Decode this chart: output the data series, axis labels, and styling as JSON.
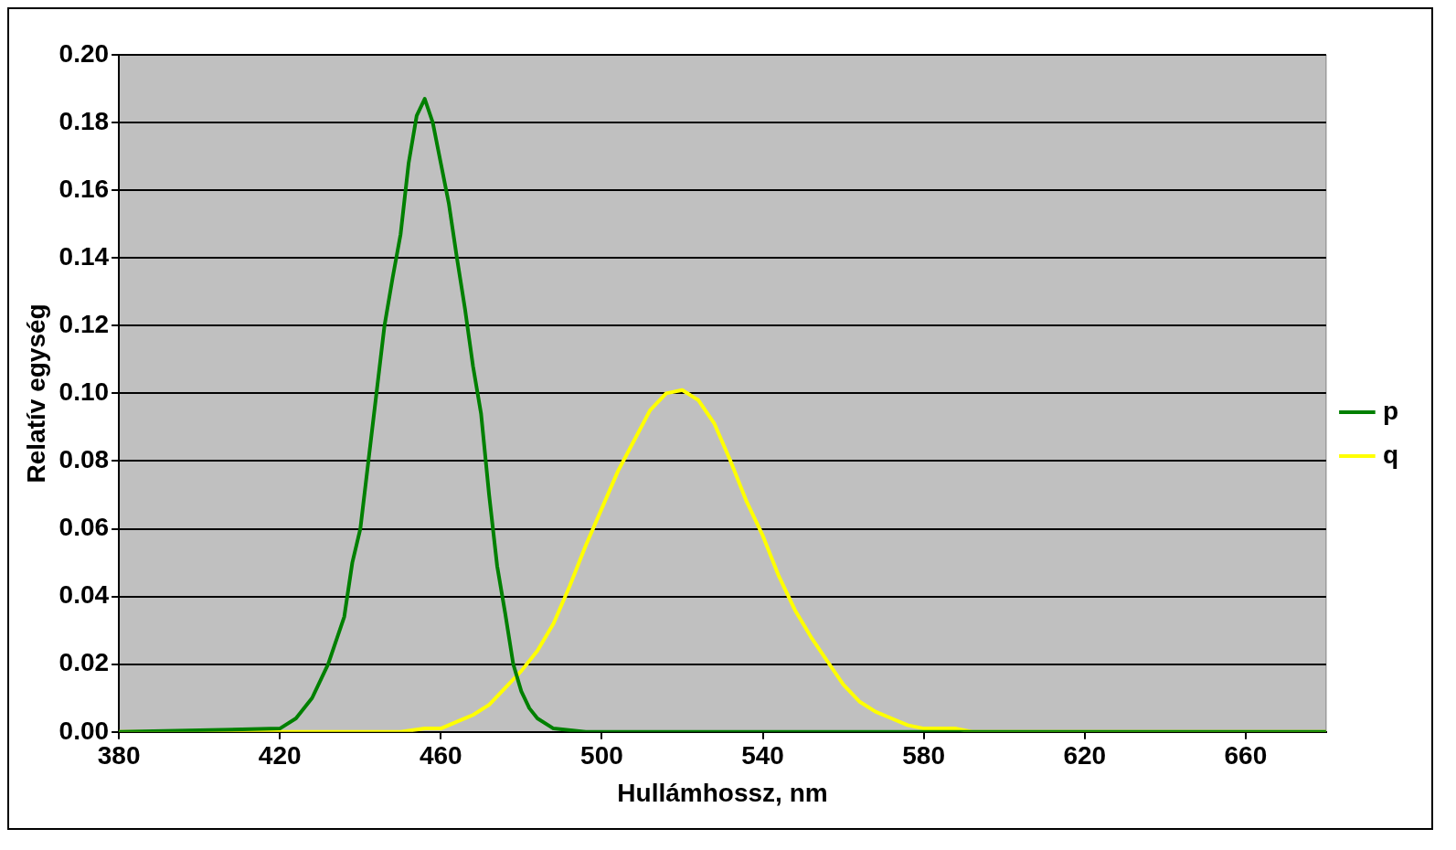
{
  "chart_data": {
    "type": "line",
    "xlabel": "Hullámhossz, nm",
    "ylabel": "Relatív egység",
    "xlim": [
      380,
      680
    ],
    "xticks": [
      380,
      420,
      460,
      500,
      540,
      580,
      620,
      660
    ],
    "ylim": [
      0,
      0.2
    ],
    "yticks": [
      {
        "value": 0,
        "label": "0.00"
      },
      0.02,
      0.04,
      0.06,
      0.08,
      {
        "value": 0.1,
        "label": "0.10"
      },
      0.12,
      0.14,
      0.16,
      0.18,
      {
        "value": 0.2,
        "label": "0.20"
      }
    ],
    "grid": "y",
    "legend": "right",
    "marker": "none",
    "line_style": "solid",
    "series": [
      {
        "name": "p",
        "color": "#008000",
        "x": [
          380,
          420,
          424,
          428,
          432,
          436,
          438,
          440,
          442,
          444,
          446,
          448,
          450,
          452,
          454,
          456,
          458,
          460,
          462,
          464,
          466,
          468,
          470,
          472,
          474,
          476,
          478,
          480,
          482,
          484,
          488,
          496,
          680
        ],
        "values": [
          0,
          0.001,
          0.004,
          0.01,
          0.02,
          0.034,
          0.05,
          0.06,
          0.08,
          0.1,
          0.12,
          0.134,
          0.147,
          0.168,
          0.182,
          0.187,
          0.18,
          0.168,
          0.156,
          0.14,
          0.125,
          0.108,
          0.094,
          0.07,
          0.049,
          0.035,
          0.02,
          0.012,
          0.007,
          0.004,
          0.001,
          0,
          0
        ]
      },
      {
        "name": "q",
        "color": "#ffff00",
        "x": [
          380,
          450,
          456,
          460,
          464,
          468,
          472,
          476,
          480,
          484,
          488,
          492,
          496,
          500,
          504,
          508,
          512,
          516,
          520,
          524,
          528,
          532,
          536,
          540,
          544,
          548,
          552,
          556,
          560,
          564,
          568,
          572,
          576,
          580,
          588,
          592,
          680
        ],
        "values": [
          0,
          0,
          0.001,
          0.001,
          0.003,
          0.005,
          0.008,
          0.013,
          0.018,
          0.024,
          0.032,
          0.043,
          0.055,
          0.066,
          0.077,
          0.086,
          0.095,
          0.1,
          0.101,
          0.098,
          0.091,
          0.08,
          0.068,
          0.058,
          0.046,
          0.036,
          0.028,
          0.021,
          0.014,
          0.009,
          0.006,
          0.004,
          0.002,
          0.001,
          0.001,
          0,
          0
        ]
      }
    ]
  }
}
